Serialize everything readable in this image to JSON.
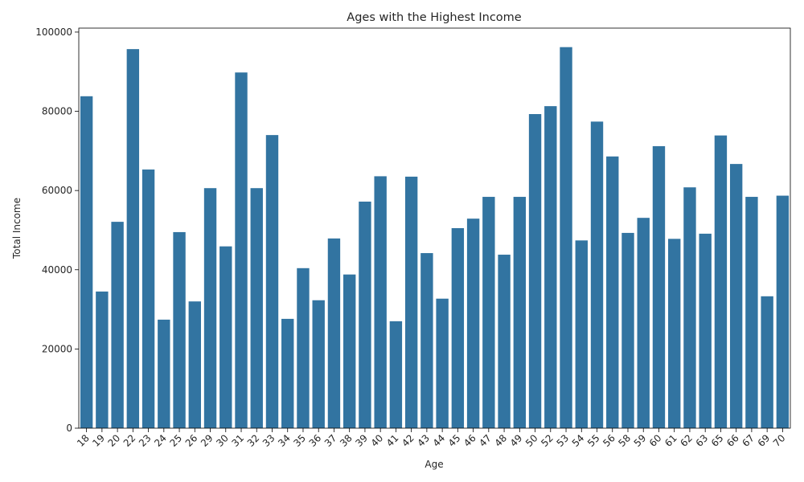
{
  "chart_data": {
    "type": "bar",
    "title": "Ages with the Highest Income",
    "xlabel": "Age",
    "ylabel": "Total Income",
    "categories": [
      "18",
      "19",
      "20",
      "22",
      "23",
      "24",
      "25",
      "26",
      "29",
      "30",
      "31",
      "32",
      "33",
      "34",
      "35",
      "36",
      "37",
      "38",
      "39",
      "40",
      "41",
      "42",
      "43",
      "44",
      "45",
      "46",
      "47",
      "48",
      "49",
      "50",
      "52",
      "53",
      "54",
      "55",
      "56",
      "58",
      "59",
      "60",
      "61",
      "62",
      "63",
      "65",
      "66",
      "67",
      "69",
      "70"
    ],
    "values": [
      83800,
      34500,
      52100,
      95700,
      65300,
      27400,
      49500,
      32000,
      60600,
      45900,
      89800,
      60600,
      74000,
      27600,
      40400,
      32300,
      47900,
      38800,
      57200,
      63600,
      27000,
      63500,
      44200,
      32700,
      50500,
      52900,
      58400,
      43800,
      58400,
      79300,
      81300,
      96200,
      47400,
      77400,
      68600,
      49300,
      53100,
      71200,
      47800,
      60800,
      49100,
      73900,
      66700,
      58400,
      33300,
      58700
    ],
    "yticks": [
      "0",
      "20000",
      "40000",
      "60000",
      "80000",
      "100000"
    ],
    "ylim": [
      0,
      101000
    ],
    "bar_color": "#3274a1",
    "grid": false,
    "legend": "none"
  }
}
